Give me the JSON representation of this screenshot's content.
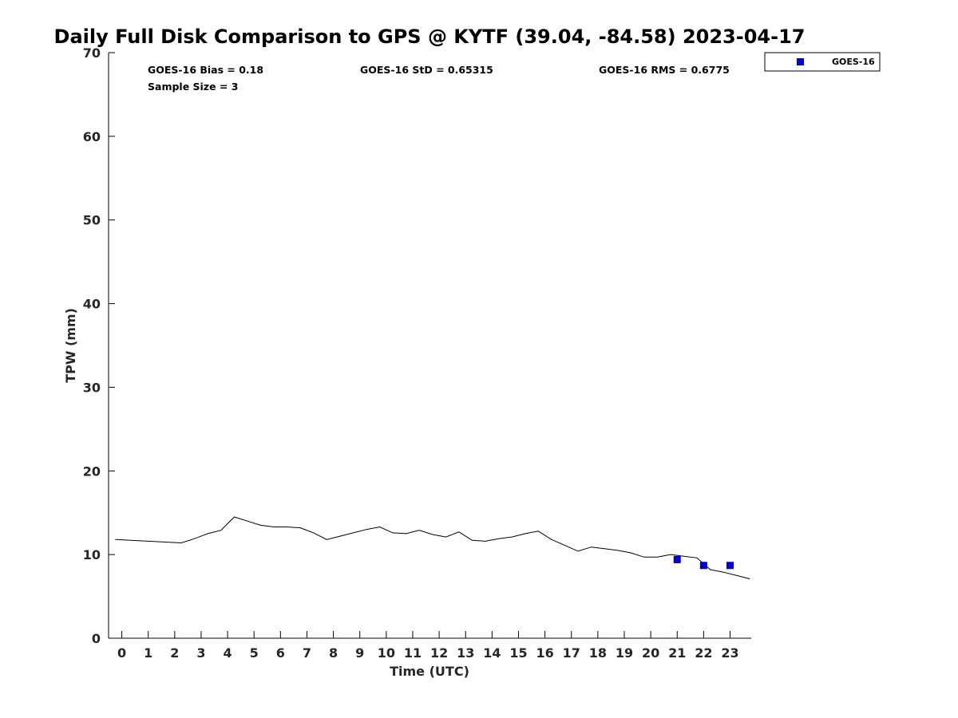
{
  "chart_data": {
    "type": "line",
    "title": "Daily Full Disk Comparison to GPS @ KYTF (39.04, -84.58) 2023-04-17",
    "xlabel": "Time (UTC)",
    "ylabel": "TPW (mm)",
    "xlim": [
      -0.5,
      23.8
    ],
    "ylim": [
      0,
      70
    ],
    "x_ticks": [
      0,
      1,
      2,
      3,
      4,
      5,
      6,
      7,
      8,
      9,
      10,
      11,
      12,
      13,
      14,
      15,
      16,
      17,
      18,
      19,
      20,
      21,
      22,
      23
    ],
    "y_ticks": [
      0,
      10,
      20,
      30,
      40,
      50,
      60,
      70
    ],
    "grid": false,
    "legend_position": "outside-top-right",
    "series": [
      {
        "name": "",
        "style": "line",
        "color": "#000000",
        "x": [
          -0.25,
          2.25,
          2.75,
          3.25,
          3.75,
          4.25,
          4.75,
          5.25,
          5.75,
          6.25,
          6.75,
          7.25,
          7.75,
          8.25,
          8.75,
          9.25,
          9.75,
          10.25,
          10.75,
          11.25,
          11.75,
          12.25,
          12.75,
          13.25,
          13.75,
          14.25,
          14.75,
          15.25,
          15.75,
          16.25,
          16.75,
          17.25,
          17.75,
          18.25,
          18.75,
          19.25,
          19.75,
          20.25,
          20.75,
          21.25,
          21.75,
          22.25,
          22.75,
          23.25,
          23.75
        ],
        "y": [
          11.8,
          11.4,
          11.9,
          12.5,
          12.9,
          14.5,
          14.0,
          13.5,
          13.3,
          13.3,
          13.2,
          12.6,
          11.8,
          12.2,
          12.6,
          13.0,
          13.3,
          12.6,
          12.5,
          12.9,
          12.4,
          12.1,
          12.7,
          11.7,
          11.6,
          11.9,
          12.1,
          12.5,
          12.8,
          11.8,
          11.1,
          10.4,
          10.9,
          10.7,
          10.5,
          10.2,
          9.7,
          9.7,
          10.0,
          9.8,
          9.6,
          8.2,
          7.9,
          7.5,
          7.1
        ]
      },
      {
        "name": "GOES-16",
        "style": "markers",
        "color": "#0000cc",
        "x": [
          21,
          22,
          23
        ],
        "y": [
          9.4,
          8.7,
          8.7
        ]
      }
    ],
    "stats": {
      "bias": "GOES-16 Bias = 0.18",
      "std": "GOES-16 StD = 0.65315",
      "rms": "GOES-16 RMS = 0.6775",
      "sample": "Sample Size = 3"
    }
  }
}
